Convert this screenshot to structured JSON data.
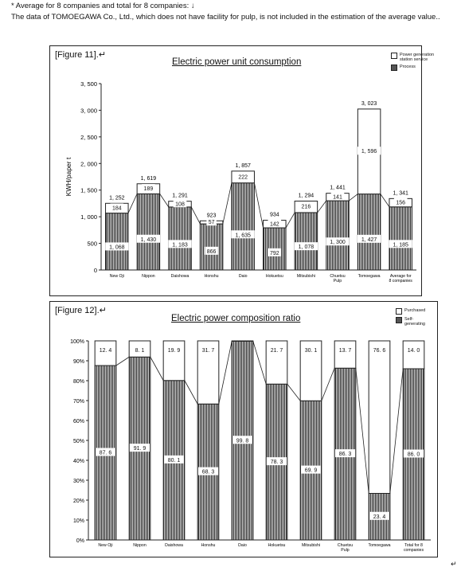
{
  "notes": {
    "line1": "* Average for 8 companies and total for 8 companies: ↓",
    "line2": "The data of TOMOEGAWA Co., Ltd., which does not have facility for pulp, is not included in the estimation of the average value.."
  },
  "figure11": {
    "label": "[Figure 11].↵",
    "legend": [
      {
        "label": "Power generation station service",
        "style": "white"
      },
      {
        "label": "Process",
        "style": "hatched"
      }
    ],
    "chart_data": {
      "type": "bar",
      "stacked": true,
      "title": "Electric power unit consumption",
      "ylabel": "KWH/paper t",
      "ylim": [
        0,
        3500
      ],
      "yticks": [
        "0",
        "500",
        "1, 000",
        "1, 500",
        "2, 000",
        "2, 500",
        "3, 000",
        "3, 500"
      ],
      "ytick_values": [
        0,
        500,
        1000,
        1500,
        2000,
        2500,
        3000,
        3500
      ],
      "categories": [
        "New Oji",
        "Nippon",
        "Daishowa",
        "Honshu",
        "Daio",
        "Hokuetsu",
        "Mitsubishi",
        "Chuetsu Pulp",
        "Tomoegawa",
        "Average for 8 companies"
      ],
      "series": [
        {
          "name": "Process",
          "values": [
            1068,
            1430,
            1183,
            866,
            1635,
            792,
            1078,
            1300,
            1427,
            1185
          ],
          "labels": [
            "1, 068",
            "1, 430",
            "1, 183",
            "866",
            "1, 635",
            "792",
            "1, 078",
            "1, 300",
            "1, 427",
            "1, 185"
          ]
        },
        {
          "name": "Power generation station service",
          "values": [
            184,
            189,
            108,
            57,
            222,
            142,
            216,
            141,
            1596,
            156
          ],
          "labels": [
            "184",
            "189",
            "108",
            "57",
            "222",
            "142",
            "216",
            "141",
            "1, 596",
            "156"
          ]
        }
      ],
      "totals": [
        1252,
        1619,
        1291,
        923,
        1857,
        934,
        1294,
        1441,
        3023,
        1341
      ],
      "total_labels": [
        "1, 252",
        "1, 619",
        "1, 291",
        "923",
        "1, 857",
        "934",
        "1, 294",
        "1, 441",
        "3, 023",
        "1, 341"
      ],
      "grid": false
    }
  },
  "figure12": {
    "label": "[Figure 12].↵",
    "legend": [
      {
        "label": "Purchased",
        "style": "white"
      },
      {
        "label": "Self-generating",
        "style": "hatched"
      }
    ],
    "chart_data": {
      "type": "bar",
      "stacked": true,
      "percent": true,
      "title": "Electric power composition ratio",
      "ylim": [
        0,
        100
      ],
      "yticks": [
        "0%",
        "10%",
        "20%",
        "30%",
        "40%",
        "50%",
        "60%",
        "70%",
        "80%",
        "90%",
        "100%"
      ],
      "categories": [
        "New Oji",
        "Nippon",
        "Daishowa",
        "Honshu",
        "Daio",
        "Hokuetsu",
        "Mitsubishi",
        "Chuetsu Pulp",
        "Tomoegawa",
        "Total for 8 companies"
      ],
      "series": [
        {
          "name": "Self-generating",
          "values": [
            87.6,
            91.9,
            80.1,
            68.3,
            99.8,
            78.3,
            69.9,
            86.3,
            23.4,
            86.0
          ],
          "labels": [
            "87. 6",
            "91. 9",
            "80. 1",
            "68. 3",
            "99. 8",
            "78. 3",
            "69. 9",
            "86. 3",
            "23. 4",
            "86. 0"
          ]
        },
        {
          "name": "Purchased",
          "values": [
            12.4,
            8.1,
            19.9,
            31.7,
            0.2,
            21.7,
            30.1,
            13.7,
            76.6,
            14.0
          ],
          "labels": [
            "12. 4",
            "8. 1",
            "19. 9",
            "31. 7",
            "",
            "21. 7",
            "30. 1",
            "13. 7",
            "76. 6",
            "14. 0"
          ]
        }
      ],
      "grid": false
    }
  },
  "page_mark": "↵"
}
